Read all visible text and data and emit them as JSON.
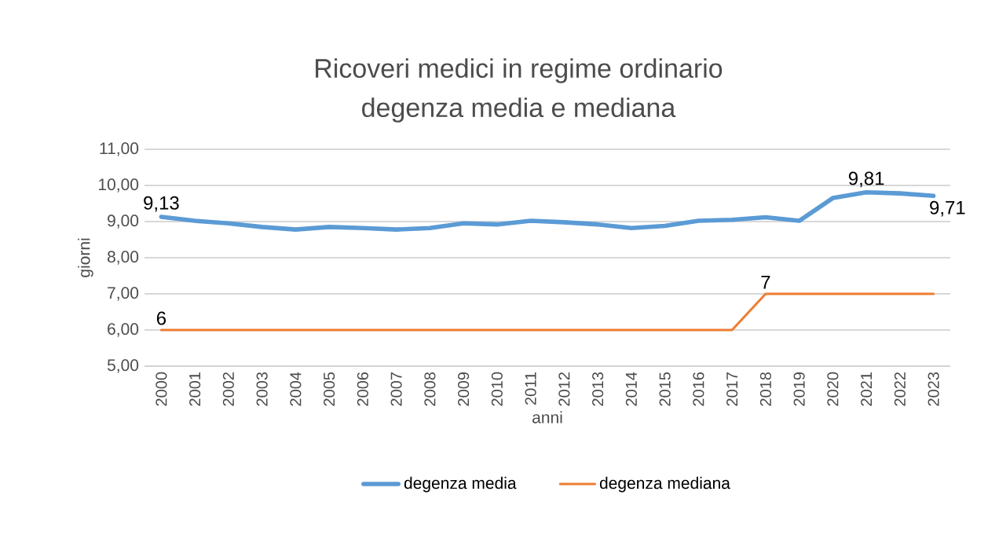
{
  "chart_data": {
    "type": "line",
    "title": "Ricoveri medici in regime ordinario",
    "subtitle": "degenza media e mediana",
    "xlabel": "anni",
    "ylabel": "giorni",
    "categories": [
      "2000",
      "2001",
      "2002",
      "2003",
      "2004",
      "2005",
      "2006",
      "2007",
      "2008",
      "2009",
      "2010",
      "2011",
      "2012",
      "2013",
      "2014",
      "2015",
      "2016",
      "2017",
      "2018",
      "2019",
      "2020",
      "2021",
      "2022",
      "2023"
    ],
    "series": [
      {
        "name": "degenza media",
        "color": "#5b9bd5",
        "values": [
          9.13,
          9.02,
          8.95,
          8.85,
          8.78,
          8.85,
          8.82,
          8.78,
          8.82,
          8.95,
          8.92,
          9.02,
          8.98,
          8.92,
          8.82,
          8.88,
          9.02,
          9.05,
          9.12,
          9.02,
          9.65,
          9.81,
          9.78,
          9.71
        ],
        "value_labels": [
          "9,13",
          null,
          null,
          null,
          null,
          null,
          null,
          null,
          null,
          null,
          null,
          null,
          null,
          null,
          null,
          null,
          null,
          null,
          null,
          null,
          null,
          "9,81",
          null,
          "9,71"
        ]
      },
      {
        "name": "degenza mediana",
        "color": "#ed7d31",
        "values": [
          6,
          6,
          6,
          6,
          6,
          6,
          6,
          6,
          6,
          6,
          6,
          6,
          6,
          6,
          6,
          6,
          6,
          6,
          7,
          7,
          7,
          7,
          7,
          7
        ],
        "value_labels": [
          "6",
          null,
          null,
          null,
          null,
          null,
          null,
          null,
          null,
          null,
          null,
          null,
          null,
          null,
          null,
          null,
          null,
          null,
          "7",
          null,
          null,
          null,
          null,
          null
        ]
      }
    ],
    "ylim": [
      5,
      11
    ],
    "yticks": [
      {
        "value": 5,
        "label": "5,00"
      },
      {
        "value": 6,
        "label": "6,00"
      },
      {
        "value": 7,
        "label": "7,00"
      },
      {
        "value": 8,
        "label": "8,00"
      },
      {
        "value": 9,
        "label": "9,00"
      },
      {
        "value": 10,
        "label": "10,00"
      },
      {
        "value": 11,
        "label": "11,00"
      }
    ],
    "grid": "y",
    "legend": "bottom",
    "marker": "none",
    "line_style": "solid"
  }
}
